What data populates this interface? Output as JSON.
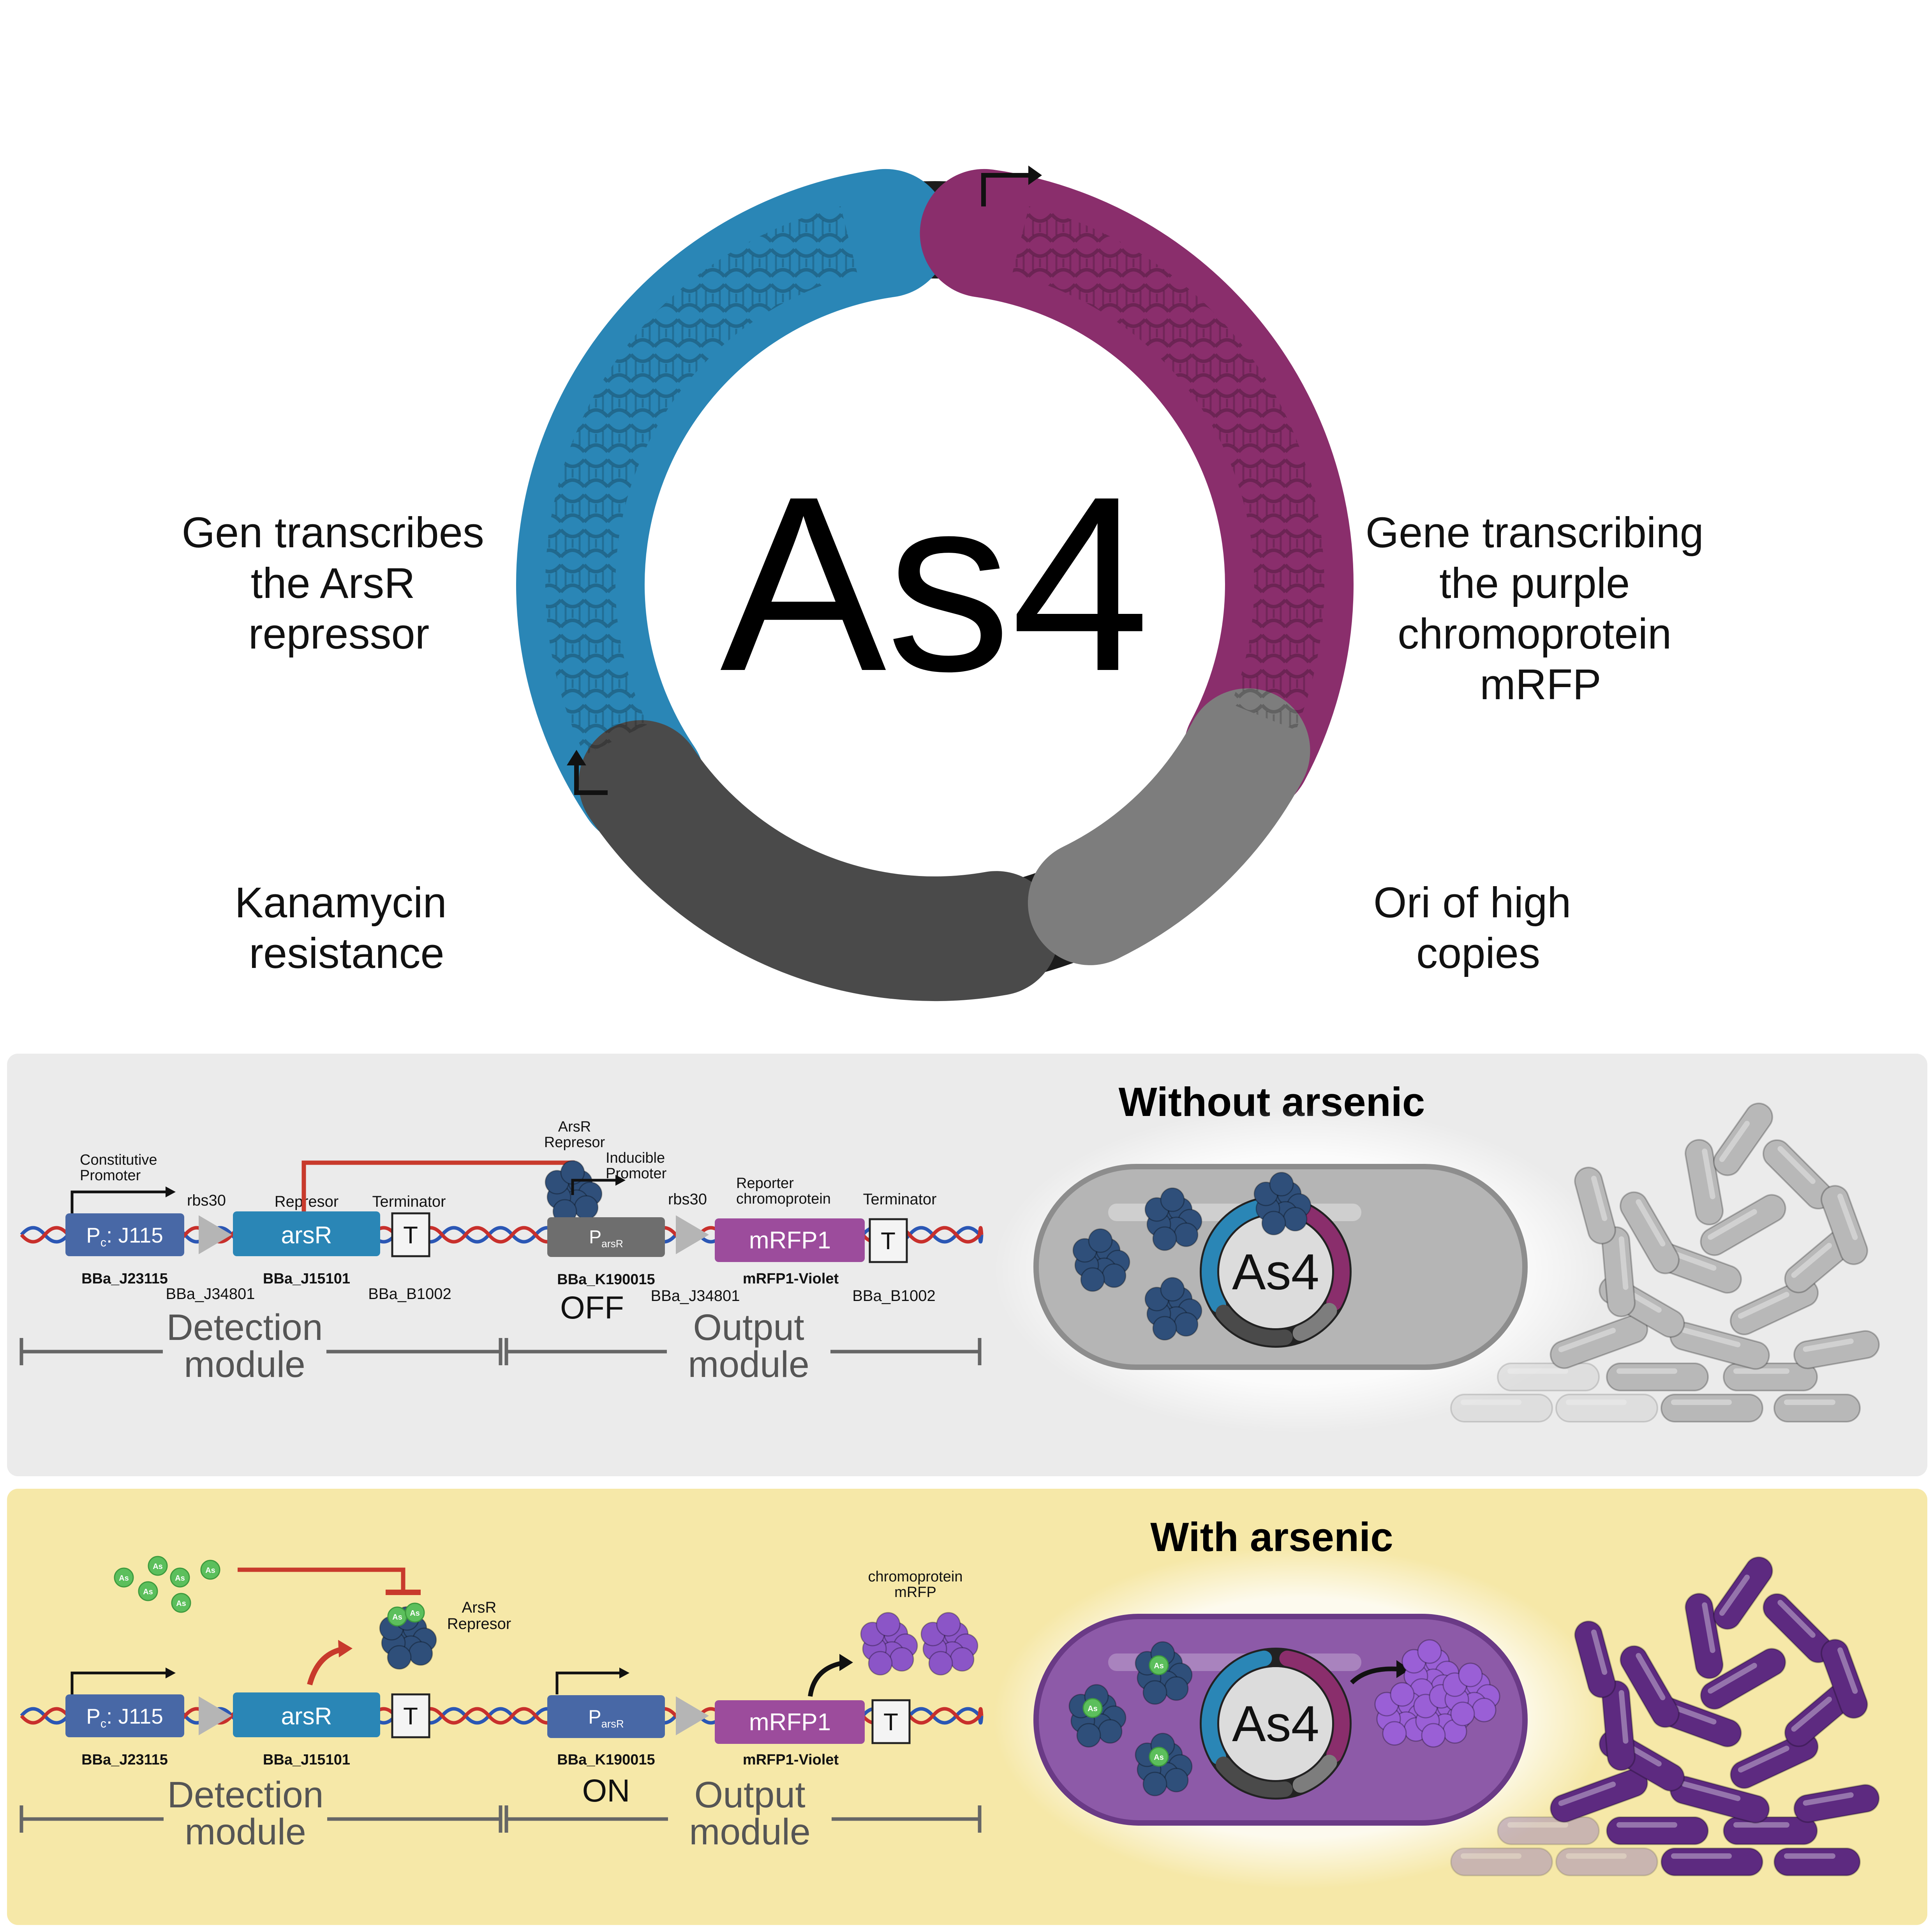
{
  "plasmid": {
    "name": "As4",
    "labels": {
      "arsr": [
        "Gen transcribes",
        "the ArsR",
        "repressor"
      ],
      "mrfp": [
        "Gene transcribing",
        "the purple",
        "chromoprotein",
        "mRFP"
      ],
      "kan": [
        "Kanamycin",
        "resistance"
      ],
      "ori": [
        "Ori of high",
        "copies"
      ]
    }
  },
  "colors": {
    "arsr_blue": "#2a86b6",
    "mrfp_purple": "#8a2e6c",
    "kan_gray": "#4a4a4a",
    "ori_gray": "#7d7d7d",
    "ring_black": "#1c1c1c",
    "panel_gray": "#ebebeb",
    "panel_yellow": "#f6e8a8",
    "promoter_blue": "#4868a6",
    "repressor_red": "#c83a2c",
    "arsenic_green": "#5cbf5c",
    "cell_gray": "#b5b5b5",
    "cell_purple": "#8d5aa8",
    "bacteria_purple": "#5d2a80"
  },
  "panel_off": {
    "title": "Without arsenic",
    "promoter_label": "Constitutive\nPromoter",
    "promoter_box": "P",
    "promoter_sub": "c",
    "promoter_name": ": J115",
    "promoter_id": "BBa_J23115",
    "rbs_label": "rbs30",
    "rbs_id": "BBa_J34801",
    "repressor_label": "Represor",
    "gene": "arsR",
    "gene_id": "BBa_J15101",
    "terminator_label": "Terminator",
    "terminator_box": "T",
    "terminator_id": "BBa_B1002",
    "arsr_label": "ArsR\nRepresor",
    "inducible_label": "Inducible\nPromoter",
    "parsr_box": "P",
    "parsr_sub": "arsR",
    "parsr_id": "BBa_K190015",
    "state": "OFF",
    "rbs2_label": "rbs30",
    "rbs2_id": "BBa_J34801",
    "reporter_label": "Reporter\nchromoprotein",
    "reporter_gene": "mRFP1",
    "reporter_id": "mRFP1-Violet",
    "terminator2_label": "Terminator",
    "terminator2_id": "BBa_B1002",
    "detection_module": "Detection\nmodule",
    "output_module": "Output\nmodule",
    "cell_plasmid": "As4"
  },
  "panel_on": {
    "title": "With arsenic",
    "arsenic_symbol": "As",
    "arsr_label": "ArsR\nRepresor",
    "chromoprotein_label": "chromoprotein\nmRFP",
    "promoter_box": "P",
    "promoter_sub": "c",
    "promoter_name": ": J115",
    "promoter_id": "BBa_J23115",
    "gene": "arsR",
    "gene_id": "BBa_J15101",
    "terminator_box": "T",
    "parsr_box": "P",
    "parsr_sub": "arsR",
    "parsr_id": "BBa_K190015",
    "state": "ON",
    "reporter_gene": "mRFP1",
    "reporter_id": "mRFP1-Violet",
    "terminator2_box": "T",
    "detection_module": "Detection\nmodule",
    "output_module": "Output\nmodule",
    "cell_plasmid": "As4"
  }
}
